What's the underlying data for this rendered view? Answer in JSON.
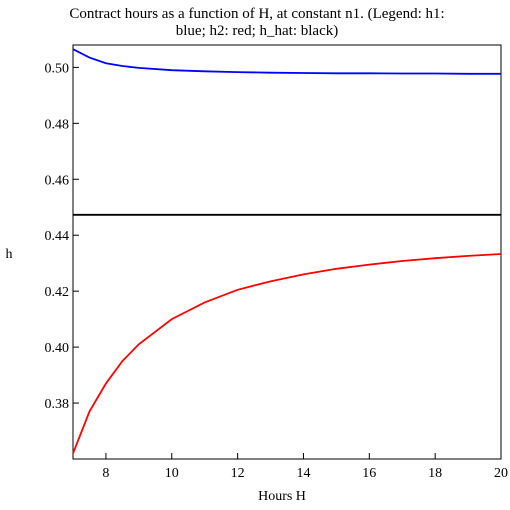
{
  "chart_data": {
    "type": "line",
    "title_line1": "Contract hours as a function of H, at constant n1. (Legend: h1:",
    "title_line2": "blue; h2: red; h_hat: black)",
    "xlabel": "Hours H",
    "ylabel": "h",
    "xlim": [
      7,
      20
    ],
    "ylim": [
      0.36,
      0.508
    ],
    "x_ticks": [
      8,
      10,
      12,
      14,
      16,
      18,
      20
    ],
    "y_ticks": [
      0.38,
      0.4,
      0.42,
      0.44,
      0.46,
      0.48,
      0.5
    ],
    "x_tick_labels": [
      "8",
      "10",
      "12",
      "14",
      "16",
      "18",
      "20"
    ],
    "y_tick_labels": [
      "0.38",
      "0.40",
      "0.42",
      "0.44",
      "0.46",
      "0.48",
      "0.50"
    ],
    "grid": false,
    "series": [
      {
        "name": "h1",
        "color": "#0000ff",
        "x": [
          7,
          7.5,
          8,
          8.5,
          9,
          10,
          11,
          12,
          13,
          14,
          15,
          16,
          17,
          18,
          19,
          20
        ],
        "y": [
          0.5065,
          0.5035,
          0.5015,
          0.5005,
          0.4998,
          0.499,
          0.4986,
          0.4983,
          0.4981,
          0.498,
          0.4979,
          0.4979,
          0.4978,
          0.4978,
          0.4977,
          0.4977
        ]
      },
      {
        "name": "h2",
        "color": "#ff0000",
        "x": [
          7,
          7.5,
          8,
          8.5,
          9,
          10,
          11,
          12,
          13,
          14,
          15,
          16,
          17,
          18,
          19,
          20
        ],
        "y": [
          0.362,
          0.377,
          0.387,
          0.395,
          0.401,
          0.41,
          0.416,
          0.4205,
          0.4235,
          0.426,
          0.428,
          0.4295,
          0.4308,
          0.4318,
          0.4326,
          0.4333
        ]
      },
      {
        "name": "h_hat",
        "color": "#000000",
        "x": [
          7,
          20
        ],
        "y": [
          0.4473,
          0.4473
        ]
      }
    ]
  }
}
